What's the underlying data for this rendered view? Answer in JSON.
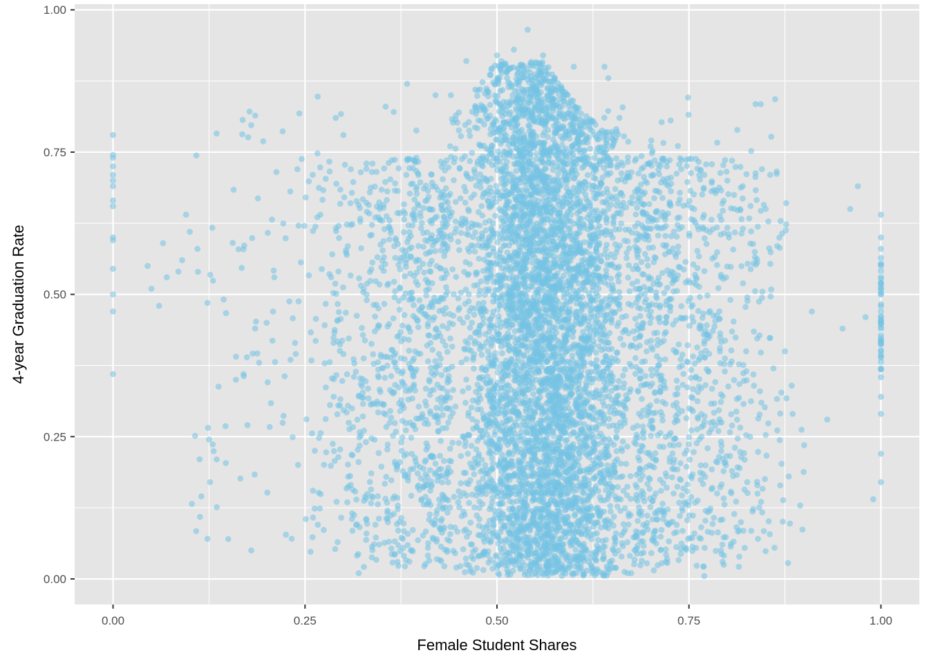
{
  "chart_data": {
    "type": "scatter",
    "title": "",
    "xlabel": "Female Student Shares",
    "ylabel": "4-year Graduation Rate",
    "xlim": [
      -0.05,
      1.05
    ],
    "ylim": [
      -0.045,
      1.01
    ],
    "x_ticks": [
      0,
      0.25,
      0.5,
      0.75,
      1.0
    ],
    "x_tick_labels": [
      "0.00",
      "0.25",
      "0.50",
      "0.75",
      "1.00"
    ],
    "y_ticks": [
      0,
      0.25,
      0.5,
      0.75,
      1.0
    ],
    "y_tick_labels": [
      "0.00",
      "0.25",
      "0.50",
      "0.75",
      "1.00"
    ],
    "grid": true,
    "legend": "none",
    "point_color": "#74c3e4",
    "point_alpha": 0.55,
    "panel_background": "#e5e5e5",
    "grid_color": "#ffffff",
    "sample_points": [
      [
        0.0,
        0.78
      ],
      [
        0.0,
        0.745
      ],
      [
        0.0,
        0.74
      ],
      [
        0.0,
        0.725
      ],
      [
        0.0,
        0.71
      ],
      [
        0.0,
        0.7
      ],
      [
        0.0,
        0.69
      ],
      [
        0.0,
        0.665
      ],
      [
        0.0,
        0.655
      ],
      [
        0.0,
        0.6
      ],
      [
        0.0,
        0.595
      ],
      [
        0.0,
        0.545
      ],
      [
        0.0,
        0.5
      ],
      [
        0.0,
        0.47
      ],
      [
        0.0,
        0.36
      ],
      [
        1.0,
        0.64
      ],
      [
        1.0,
        0.6
      ],
      [
        1.0,
        0.58
      ],
      [
        1.0,
        0.55
      ],
      [
        1.0,
        0.52
      ],
      [
        1.0,
        0.5
      ],
      [
        1.0,
        0.47
      ],
      [
        1.0,
        0.44
      ],
      [
        1.0,
        0.4
      ],
      [
        1.0,
        0.37
      ],
      [
        1.0,
        0.32
      ],
      [
        1.0,
        0.29
      ],
      [
        1.0,
        0.22
      ],
      [
        1.0,
        0.17
      ],
      [
        0.045,
        0.55
      ],
      [
        0.05,
        0.51
      ],
      [
        0.06,
        0.48
      ],
      [
        0.065,
        0.59
      ],
      [
        0.07,
        0.53
      ],
      [
        0.085,
        0.54
      ],
      [
        0.09,
        0.56
      ],
      [
        0.095,
        0.64
      ],
      [
        0.1,
        0.61
      ],
      [
        0.11,
        0.58
      ],
      [
        0.115,
        0.145
      ],
      [
        0.125,
        0.245
      ],
      [
        0.135,
        0.21
      ],
      [
        0.15,
        0.07
      ],
      [
        0.16,
        0.35
      ],
      [
        0.17,
        0.36
      ],
      [
        0.18,
        0.05
      ],
      [
        0.185,
        0.44
      ],
      [
        0.2,
        0.45
      ],
      [
        0.21,
        0.53
      ],
      [
        0.24,
        0.72
      ],
      [
        0.26,
        0.71
      ],
      [
        0.27,
        0.64
      ],
      [
        0.29,
        0.81
      ],
      [
        0.3,
        0.78
      ],
      [
        0.32,
        0.01
      ],
      [
        0.33,
        0.73
      ],
      [
        0.355,
        0.83
      ],
      [
        0.383,
        0.87
      ],
      [
        0.395,
        0.74
      ],
      [
        0.42,
        0.85
      ],
      [
        0.44,
        0.85
      ],
      [
        0.46,
        0.91
      ],
      [
        0.5,
        0.92
      ],
      [
        0.522,
        0.93
      ],
      [
        0.54,
        0.965
      ],
      [
        0.56,
        0.92
      ],
      [
        0.6,
        0.9
      ],
      [
        0.64,
        0.9
      ],
      [
        0.645,
        0.88
      ],
      [
        0.7,
        0.76
      ],
      [
        0.74,
        0.72
      ],
      [
        0.77,
        0.71
      ],
      [
        0.8,
        0.7
      ],
      [
        0.82,
        0.69
      ],
      [
        0.845,
        0.72
      ],
      [
        0.85,
        0.65
      ],
      [
        0.86,
        0.37
      ],
      [
        0.875,
        0.4
      ],
      [
        0.88,
        0.18
      ],
      [
        0.885,
        0.29
      ],
      [
        0.9,
        0.235
      ],
      [
        0.91,
        0.47
      ],
      [
        0.93,
        0.28
      ],
      [
        0.95,
        0.44
      ],
      [
        0.96,
        0.65
      ],
      [
        0.97,
        0.69
      ],
      [
        0.98,
        0.46
      ],
      [
        0.99,
        0.14
      ],
      [
        0.5,
        0.02
      ],
      [
        0.55,
        0.01
      ],
      [
        0.6,
        0.01
      ],
      [
        0.63,
        0.01
      ],
      [
        0.67,
        0.01
      ],
      [
        0.72,
        0.03
      ],
      [
        0.77,
        0.005
      ]
    ]
  }
}
